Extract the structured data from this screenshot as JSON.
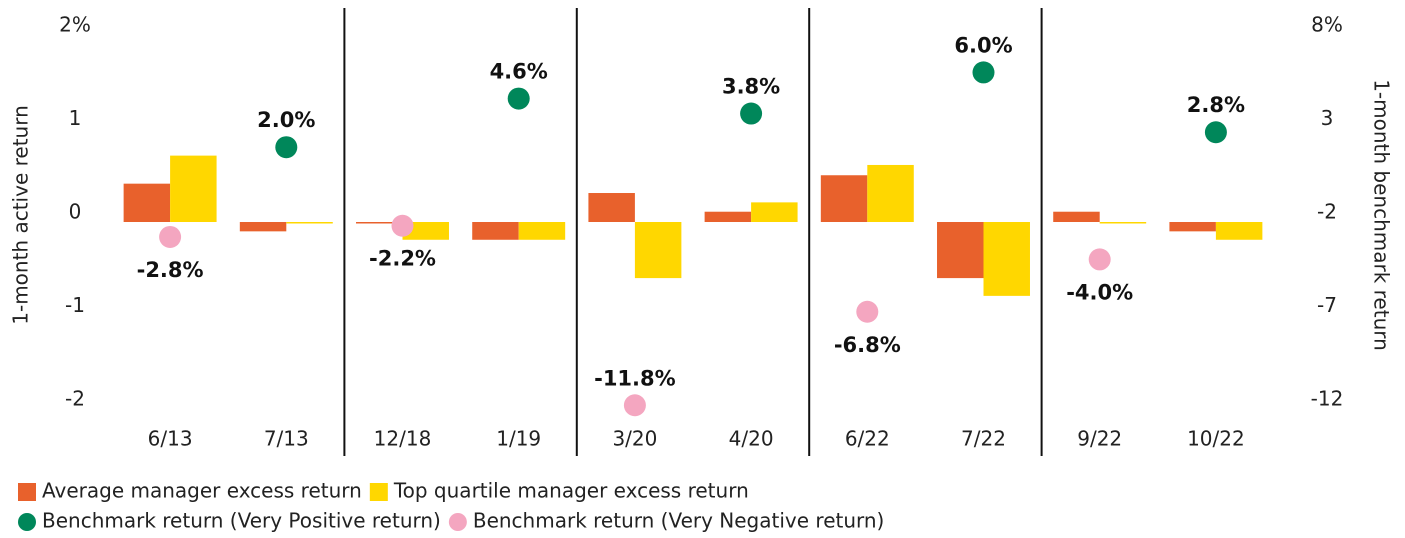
{
  "chart_data": {
    "type": "bar",
    "categories": [
      "6/13",
      "7/13",
      "12/18",
      "1/19",
      "3/20",
      "4/20",
      "6/22",
      "7/22",
      "9/22",
      "10/22"
    ],
    "ylabel": "1-month active return",
    "y2label": "1-month benchmark return",
    "ylim": [
      -2.3,
      2.3
    ],
    "yticks": [
      -2,
      -1,
      0,
      1,
      {
        "value": 2,
        "label": "2%"
      }
    ],
    "y2lim": [
      -13.5,
      9.5
    ],
    "y2ticks": [
      -12,
      -7,
      -2,
      3,
      {
        "value": 8,
        "label": "8%"
      }
    ],
    "series": [
      {
        "name": "Average manager excess return",
        "color": "#e8612c",
        "type": "bar",
        "values": [
          0.41,
          -0.1,
          -0.01,
          -0.19,
          0.31,
          0.11,
          0.5,
          -0.6,
          0.11,
          -0.1
        ]
      },
      {
        "name": "Top quartile manager excess return",
        "color": "#ffd700",
        "type": "bar",
        "values": [
          0.71,
          -0.01,
          -0.19,
          -0.19,
          -0.6,
          0.21,
          0.61,
          -0.79,
          -0.01,
          -0.19
        ]
      },
      {
        "name": "Benchmark return (Very Positive return)",
        "color": "#00875a",
        "type": "scatter",
        "axis": "y2",
        "values": [
          null,
          2.0,
          null,
          4.6,
          null,
          3.8,
          null,
          6.0,
          null,
          2.8
        ],
        "value_labels": [
          null,
          "2.0%",
          null,
          "4.6%",
          null,
          "3.8%",
          null,
          "6.0%",
          null,
          "2.8%"
        ]
      },
      {
        "name": "Benchmark return (Very Negative return)",
        "color": "#f4a6c0",
        "type": "scatter",
        "axis": "y2",
        "values": [
          -2.8,
          null,
          -2.2,
          null,
          -11.8,
          null,
          -6.8,
          null,
          -4.0,
          null
        ],
        "value_labels": [
          "-2.8%",
          null,
          "-2.2%",
          null,
          "-11.8%",
          null,
          "-6.8%",
          null,
          "-4.0%",
          null
        ]
      }
    ]
  }
}
